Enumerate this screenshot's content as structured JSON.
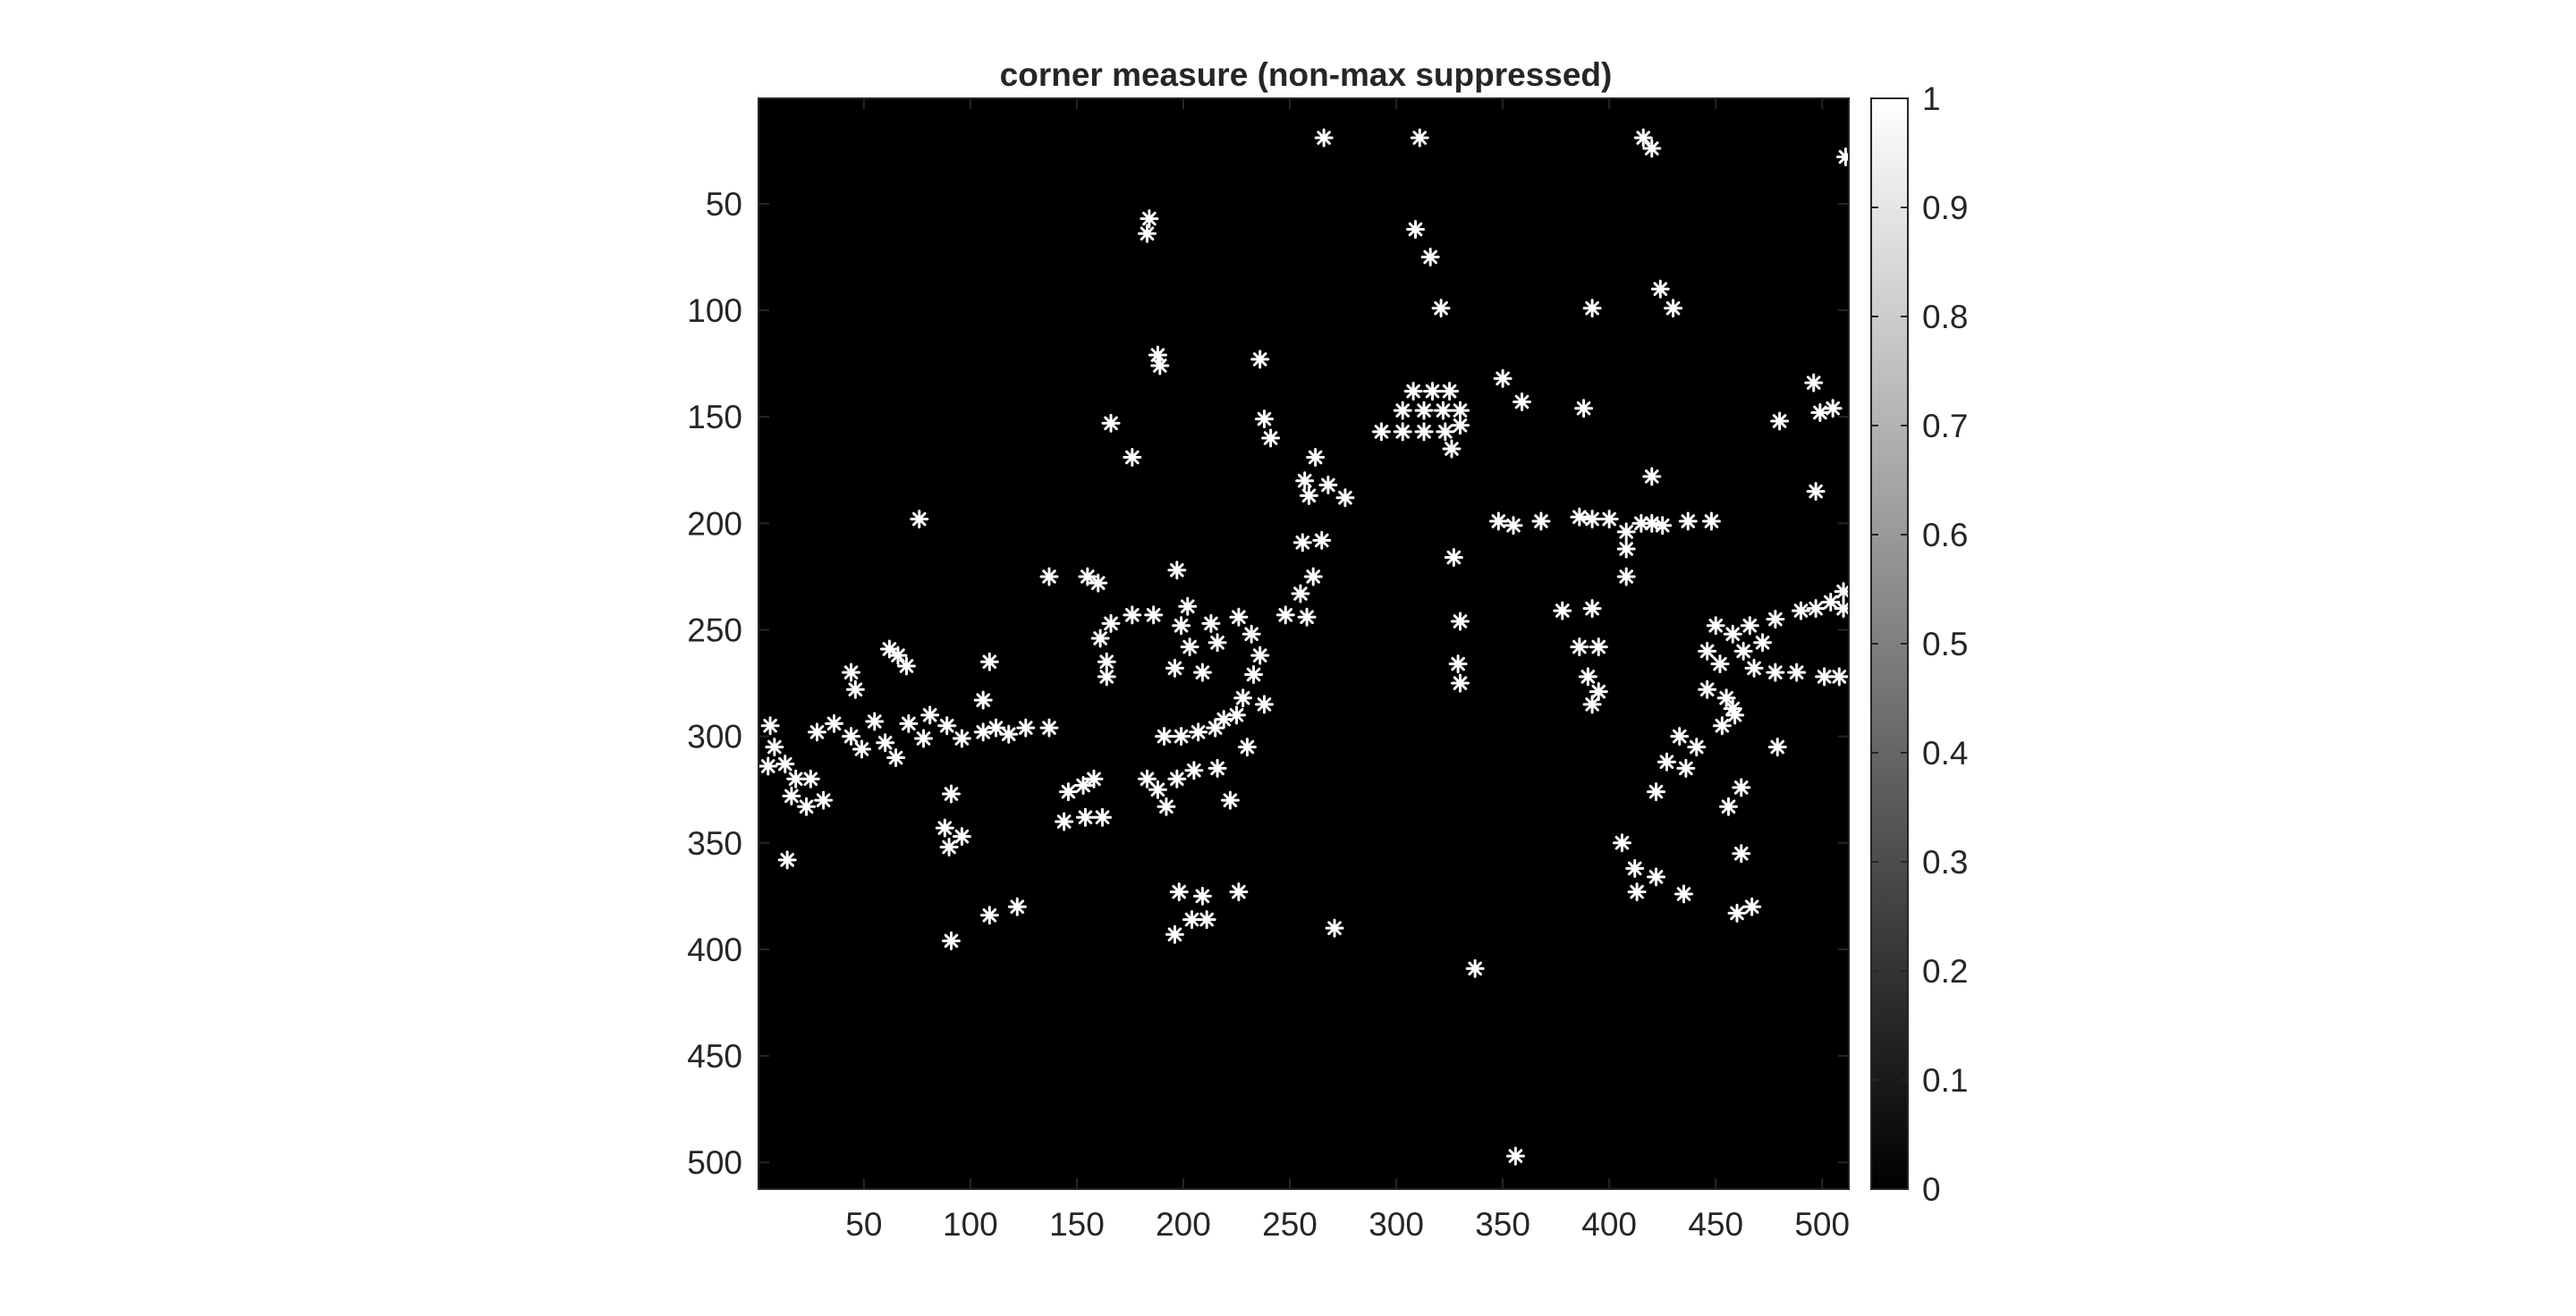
{
  "chart_data": {
    "type": "heatmap",
    "title": "corner measure (non-max suppressed)",
    "xlabel": "",
    "ylabel": "",
    "xlim": [
      0.5,
      512.5
    ],
    "ylim": [
      0.5,
      512.5
    ],
    "y_direction": "reverse",
    "x_ticks": [
      50,
      100,
      150,
      200,
      250,
      300,
      350,
      400,
      450,
      500
    ],
    "y_ticks": [
      50,
      100,
      150,
      200,
      250,
      300,
      350,
      400,
      450,
      500
    ],
    "colormap": "gray",
    "colorbar": {
      "position": "right",
      "ticks": [
        0,
        0.1,
        0.2,
        0.3,
        0.4,
        0.5,
        0.6,
        0.7,
        0.8,
        0.9,
        1
      ],
      "tick_labels": [
        "0",
        "0.1",
        "0.2",
        "0.3",
        "0.4",
        "0.5",
        "0.6",
        "0.7",
        "0.8",
        "0.9",
        "1"
      ],
      "range": [
        0,
        1
      ]
    },
    "background_value": 0,
    "corner_value": 1,
    "points": [
      [
        266,
        19
      ],
      [
        311,
        19
      ],
      [
        416,
        19
      ],
      [
        420,
        24
      ],
      [
        511,
        28
      ],
      [
        183,
        64
      ],
      [
        184,
        57
      ],
      [
        309,
        62
      ],
      [
        316,
        75
      ],
      [
        321,
        99
      ],
      [
        392,
        99
      ],
      [
        424,
        90
      ],
      [
        430,
        99
      ],
      [
        188,
        121
      ],
      [
        189,
        126
      ],
      [
        236,
        123
      ],
      [
        308,
        138
      ],
      [
        317,
        138
      ],
      [
        325,
        138
      ],
      [
        303,
        147
      ],
      [
        313,
        147
      ],
      [
        322,
        147
      ],
      [
        330,
        147
      ],
      [
        293,
        157
      ],
      [
        303,
        157
      ],
      [
        313,
        157
      ],
      [
        323,
        157
      ],
      [
        330,
        154
      ],
      [
        326,
        165
      ],
      [
        350,
        132
      ],
      [
        359,
        143
      ],
      [
        388,
        146
      ],
      [
        496,
        134
      ],
      [
        499,
        148
      ],
      [
        505,
        146
      ],
      [
        480,
        152
      ],
      [
        497,
        185
      ],
      [
        166,
        153
      ],
      [
        176,
        169
      ],
      [
        238,
        151
      ],
      [
        241,
        160
      ],
      [
        262,
        169
      ],
      [
        257,
        180
      ],
      [
        259,
        187
      ],
      [
        268,
        182
      ],
      [
        276,
        188
      ],
      [
        76,
        198
      ],
      [
        256,
        209
      ],
      [
        265,
        208
      ],
      [
        348,
        199
      ],
      [
        355,
        201
      ],
      [
        368,
        199
      ],
      [
        386,
        197
      ],
      [
        392,
        198
      ],
      [
        400,
        198
      ],
      [
        408,
        204
      ],
      [
        415,
        200
      ],
      [
        420,
        200
      ],
      [
        425,
        201
      ],
      [
        437,
        199
      ],
      [
        448,
        199
      ],
      [
        420,
        178
      ],
      [
        327,
        216
      ],
      [
        408,
        212
      ],
      [
        408,
        225
      ],
      [
        137,
        225
      ],
      [
        155,
        225
      ],
      [
        160,
        228
      ],
      [
        197,
        222
      ],
      [
        261,
        225
      ],
      [
        255,
        233
      ],
      [
        258,
        244
      ],
      [
        248,
        243
      ],
      [
        166,
        247
      ],
      [
        161,
        254
      ],
      [
        164,
        265
      ],
      [
        164,
        272
      ],
      [
        176,
        243
      ],
      [
        186,
        243
      ],
      [
        202,
        239
      ],
      [
        199,
        248
      ],
      [
        203,
        258
      ],
      [
        196,
        268
      ],
      [
        209,
        270
      ],
      [
        213,
        247
      ],
      [
        226,
        244
      ],
      [
        216,
        256
      ],
      [
        232,
        252
      ],
      [
        236,
        262
      ],
      [
        233,
        271
      ],
      [
        228,
        282
      ],
      [
        219,
        292
      ],
      [
        238,
        285
      ],
      [
        230,
        305
      ],
      [
        330,
        246
      ],
      [
        329,
        266
      ],
      [
        330,
        275
      ],
      [
        378,
        241
      ],
      [
        392,
        240
      ],
      [
        386,
        258
      ],
      [
        395,
        258
      ],
      [
        390,
        272
      ],
      [
        395,
        279
      ],
      [
        392,
        285
      ],
      [
        450,
        248
      ],
      [
        458,
        252
      ],
      [
        466,
        248
      ],
      [
        478,
        245
      ],
      [
        490,
        241
      ],
      [
        497,
        240
      ],
      [
        504,
        237
      ],
      [
        510,
        232
      ],
      [
        510,
        240
      ],
      [
        446,
        260
      ],
      [
        452,
        266
      ],
      [
        463,
        260
      ],
      [
        472,
        256
      ],
      [
        468,
        268
      ],
      [
        446,
        278
      ],
      [
        455,
        282
      ],
      [
        459,
        290
      ],
      [
        478,
        270
      ],
      [
        488,
        270
      ],
      [
        501,
        272
      ],
      [
        508,
        272
      ],
      [
        44,
        270
      ],
      [
        46,
        278
      ],
      [
        62,
        259
      ],
      [
        66,
        262
      ],
      [
        70,
        267
      ],
      [
        28,
        298
      ],
      [
        36,
        294
      ],
      [
        44,
        300
      ],
      [
        49,
        306
      ],
      [
        55,
        293
      ],
      [
        60,
        303
      ],
      [
        65,
        310
      ],
      [
        71,
        294
      ],
      [
        78,
        301
      ],
      [
        81,
        290
      ],
      [
        89,
        295
      ],
      [
        96,
        301
      ],
      [
        106,
        298
      ],
      [
        112,
        296
      ],
      [
        118,
        299
      ],
      [
        126,
        296
      ],
      [
        137,
        296
      ],
      [
        6,
        295
      ],
      [
        8,
        305
      ],
      [
        5,
        314
      ],
      [
        13,
        313
      ],
      [
        18,
        320
      ],
      [
        25,
        320
      ],
      [
        16,
        328
      ],
      [
        23,
        333
      ],
      [
        31,
        330
      ],
      [
        106,
        283
      ],
      [
        109,
        265
      ],
      [
        91,
        327
      ],
      [
        88,
        343
      ],
      [
        96,
        347
      ],
      [
        90,
        352
      ],
      [
        191,
        300
      ],
      [
        199,
        300
      ],
      [
        207,
        298
      ],
      [
        215,
        296
      ],
      [
        225,
        290
      ],
      [
        183,
        320
      ],
      [
        188,
        325
      ],
      [
        197,
        320
      ],
      [
        205,
        316
      ],
      [
        216,
        315
      ],
      [
        222,
        330
      ],
      [
        192,
        333
      ],
      [
        146,
        326
      ],
      [
        153,
        323
      ],
      [
        158,
        320
      ],
      [
        144,
        340
      ],
      [
        154,
        338
      ],
      [
        162,
        338
      ],
      [
        14,
        358
      ],
      [
        91,
        396
      ],
      [
        109,
        384
      ],
      [
        122,
        380
      ],
      [
        198,
        373
      ],
      [
        204,
        386
      ],
      [
        211,
        386
      ],
      [
        209,
        375
      ],
      [
        196,
        393
      ],
      [
        226,
        373
      ],
      [
        271,
        390
      ],
      [
        337,
        409
      ],
      [
        356,
        497
      ],
      [
        433,
        300
      ],
      [
        427,
        312
      ],
      [
        436,
        315
      ],
      [
        441,
        305
      ],
      [
        453,
        295
      ],
      [
        458,
        287
      ],
      [
        462,
        324
      ],
      [
        456,
        333
      ],
      [
        462,
        355
      ],
      [
        460,
        383
      ],
      [
        467,
        380
      ],
      [
        479,
        305
      ],
      [
        422,
        326
      ],
      [
        406,
        350
      ],
      [
        412,
        362
      ],
      [
        413,
        373
      ],
      [
        422,
        366
      ],
      [
        435,
        374
      ]
    ]
  }
}
